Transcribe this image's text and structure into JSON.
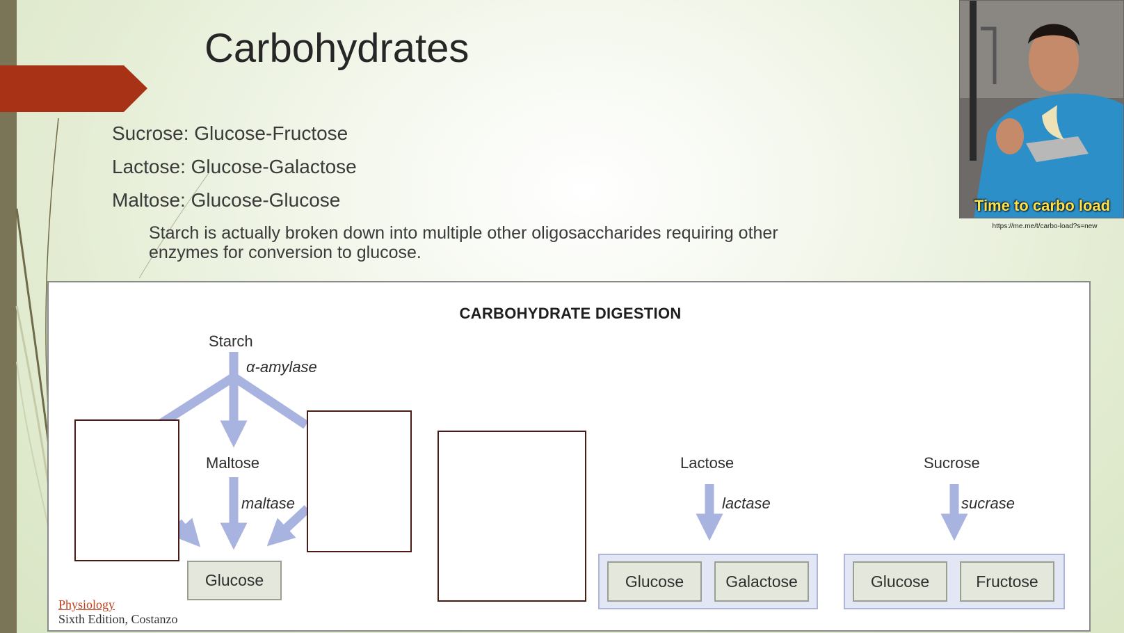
{
  "slide": {
    "title": "Carbohydrates",
    "bullets": [
      "Sucrose: Glucose-Fructose",
      "Lactose: Glucose-Galactose",
      "Maltose: Glucose-Glucose"
    ],
    "sub_bullet": "Starch is actually broken down into multiple other oligosaccharides requiring other enzymes for conversion to glucose.",
    "accent_color": "#a83216",
    "sidebar_color": "#7a7556"
  },
  "photo": {
    "overlay_text": "Time to carbo load",
    "caption": "https://me.me/t/carbo-load?s=new"
  },
  "figure": {
    "title": "CARBOHYDRATE DIGESTION",
    "starch": "Starch",
    "alpha_amylase": "α-amylase",
    "maltose": "Maltose",
    "maltase": "maltase",
    "glucose_center": "Glucose",
    "lactose": "Lactose",
    "lactase": "lactase",
    "lactose_products": [
      "Glucose",
      "Galactose"
    ],
    "sucrose": "Sucrose",
    "sucrase": "sucrase",
    "sucrose_products": [
      "Glucose",
      "Fructose"
    ],
    "arrow_color": "#a9b3e0"
  },
  "citation": {
    "book": "Physiology",
    "edition": "Sixth Edition, Costanzo"
  }
}
